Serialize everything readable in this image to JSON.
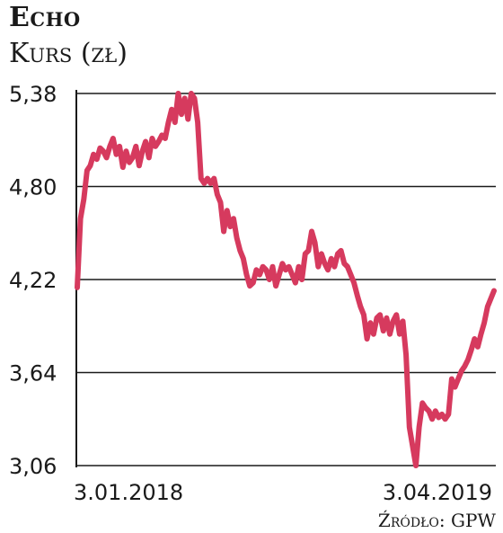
{
  "chart_data": {
    "type": "line",
    "title": "Echo",
    "ylabel": "Kurs (zł)",
    "y_ticks": [
      "5,38",
      "4,80",
      "4,22",
      "3,64",
      "3,06"
    ],
    "y_tick_values": [
      5.38,
      4.8,
      4.22,
      3.64,
      3.06
    ],
    "ylim": [
      3.06,
      5.38
    ],
    "x_labels": [
      "3.01.2018",
      "3.04.2019"
    ],
    "grid": true,
    "line_color": "#d63a5e",
    "source": "Źródło: GPW",
    "series": [
      {
        "values": [
          4.17,
          4.6,
          4.72,
          4.9,
          4.93,
          5.0,
          4.97,
          5.04,
          5.02,
          4.98,
          5.05,
          5.1,
          5.0,
          5.05,
          4.92,
          5.02,
          4.95,
          4.98,
          5.05,
          4.93,
          5.02,
          5.08,
          4.98,
          5.1,
          5.05,
          5.08,
          5.12,
          5.1,
          5.2,
          5.28,
          5.2,
          5.38,
          5.25,
          5.35,
          5.22,
          5.38,
          5.35,
          5.2,
          4.85,
          4.82,
          4.85,
          4.82,
          4.85,
          4.75,
          4.7,
          4.52,
          4.65,
          4.55,
          4.6,
          4.48,
          4.4,
          4.35,
          4.25,
          4.18,
          4.2,
          4.28,
          4.25,
          4.3,
          4.28,
          4.22,
          4.3,
          4.18,
          4.25,
          4.32,
          4.28,
          4.3,
          4.25,
          4.2,
          4.3,
          4.22,
          4.38,
          4.4,
          4.52,
          4.45,
          4.3,
          4.38,
          4.32,
          4.28,
          4.35,
          4.3,
          4.38,
          4.4,
          4.32,
          4.3,
          4.25,
          4.2,
          4.12,
          4.05,
          4.0,
          3.85,
          3.95,
          3.88,
          3.98,
          4.0,
          3.9,
          3.98,
          3.88,
          3.96,
          4.0,
          3.88,
          3.96,
          3.75,
          3.3,
          3.18,
          3.06,
          3.3,
          3.45,
          3.42,
          3.4,
          3.35,
          3.4,
          3.36,
          3.38,
          3.35,
          3.38,
          3.6,
          3.55,
          3.6,
          3.65,
          3.68,
          3.72,
          3.78,
          3.85,
          3.8,
          3.88,
          3.95,
          4.05,
          4.1,
          4.15
        ]
      }
    ]
  }
}
